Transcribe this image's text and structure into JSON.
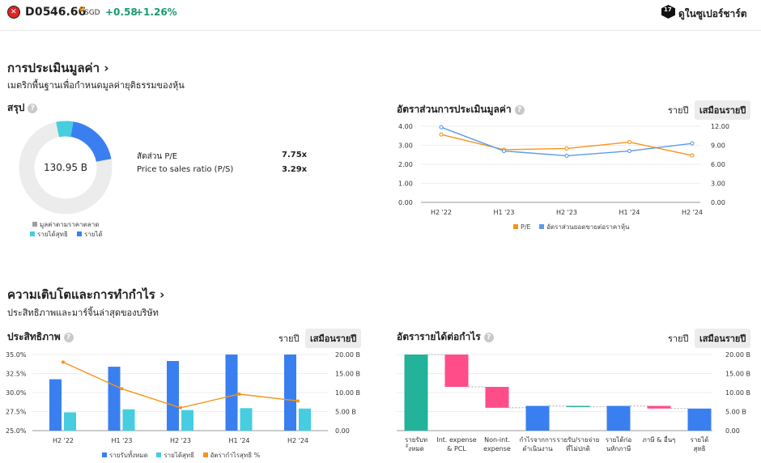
{
  "header": {
    "ticker": "D05",
    "price": "46.66",
    "price_sup": "D",
    "currency": "SGD",
    "change": "+0.58",
    "change_pct": "+1.26%",
    "supercharts_label": "ดูในซูเปอร์ชาร์ต",
    "supercharts_icon": "17",
    "colors": {
      "positive": "#1a9a6c",
      "logo": "#e02424"
    }
  },
  "valuation": {
    "title": "การประเมินมูลค่า ›",
    "subtitle": "เมตริกพื้นฐานเพื่อกำหนดมูลค่ายุติธรรมของหุ้น",
    "summary": {
      "title": "สรุป",
      "donut_center": "130.95 B",
      "metrics": [
        {
          "label": "สัดส่วน P/E",
          "value": "7.75x"
        },
        {
          "label": "Price to sales ratio (P/S)",
          "value": "3.29x"
        }
      ],
      "legend": [
        "มูลค่าตามราคาตลาด",
        "รายได้สุทธิ",
        "รายได้"
      ],
      "legend_colors": [
        "#9e9e9e",
        "#46cde0",
        "#3a7ff0"
      ],
      "donut_shares": {
        "revenue": 0.22,
        "net_income": 0.06
      }
    },
    "ratios": {
      "title": "อัตราส่วนการประเมินมูลค่า",
      "toggle": [
        "รายปี",
        "เสมือนรายปี"
      ],
      "legend": [
        "P/E",
        "อัตราส่วนยอดขายต่อราคาหุ้น"
      ]
    }
  },
  "growth": {
    "title": "ความเติบโตและการทำกำไร ›",
    "subtitle": "ประสิทธิภาพและมาร์จิ้นล่าสุดของบริษัท",
    "efficiency": {
      "title": "ประสิทธิภาพ",
      "toggle": [
        "รายปี",
        "เสมือนรายปี"
      ],
      "legend": [
        "รายรับทั้งหมด",
        "รายได้สุทธิ",
        "อัตรากำไรสุทธิ %"
      ]
    },
    "waterfall": {
      "title": "อัตรารายได้ต่อกำไร",
      "toggle": [
        "รายปี",
        "เสมือนรายปี"
      ]
    }
  },
  "chart_data": [
    {
      "type": "line",
      "title": "อัตราส่วนการประเมินมูลค่า",
      "categories": [
        "H2 '22",
        "H1 '23",
        "H2 '23",
        "H1 '24",
        "H2 '24"
      ],
      "series": [
        {
          "name": "P/E",
          "axis": "right",
          "color": "#f7931a",
          "values": [
            10.7,
            8.3,
            8.5,
            9.5,
            7.4
          ]
        },
        {
          "name": "อัตราส่วนยอดขายต่อราคาหุ้น",
          "axis": "left",
          "color": "#5b9bea",
          "values": [
            3.95,
            2.7,
            2.45,
            2.7,
            3.1
          ]
        }
      ],
      "left_ticks": [
        "4.00",
        "3.00",
        "2.00",
        "1.00",
        "0.00"
      ],
      "right_ticks": [
        "12.00",
        "9.00",
        "6.00",
        "3.00",
        "0.00"
      ],
      "ylim_left": [
        0,
        4
      ],
      "ylim_right": [
        0,
        12
      ]
    },
    {
      "type": "bar",
      "title": "ประสิทธิภาพ",
      "categories": [
        "H2 '22",
        "H1 '23",
        "H2 '23",
        "H1 '24",
        "H2 '24"
      ],
      "series": [
        {
          "name": "รายรับทั้งหมด",
          "axis": "right",
          "color": "#3a7ff0",
          "values": [
            13.5,
            16.8,
            18.3,
            20.0,
            20.0
          ]
        },
        {
          "name": "รายได้สุทธิ",
          "axis": "right",
          "color": "#46cde0",
          "values": [
            4.8,
            5.6,
            5.4,
            5.9,
            5.8
          ]
        },
        {
          "name": "อัตรากำไรสุทธิ %",
          "axis": "left",
          "type": "line",
          "color": "#f7931a",
          "values": [
            34.0,
            30.5,
            28.0,
            29.8,
            28.9
          ]
        }
      ],
      "left_ticks": [
        "35.0%",
        "32.5%",
        "30.0%",
        "27.5%",
        "25.0%"
      ],
      "right_ticks": [
        "20.00 B",
        "15.00 B",
        "10.00 B",
        "5.00 B",
        "0.00"
      ],
      "ylim_left": [
        25,
        35
      ],
      "ylim_right": [
        0,
        20
      ]
    },
    {
      "type": "waterfall",
      "title": "อัตรารายได้ต่อกำไร",
      "steps": [
        {
          "label": "รายรับทั้งหมด",
          "from": 0,
          "to": 20.0,
          "color": "#22b39a"
        },
        {
          "label": "Int. expense & PCL",
          "from": 20.0,
          "to": 11.5,
          "color": "#ff4d8a"
        },
        {
          "label": "Non-int. expense",
          "from": 11.5,
          "to": 6.0,
          "color": "#ff4d8a"
        },
        {
          "label": "กำไรจากการดำเนินงาน",
          "from": 0,
          "to": 6.5,
          "color": "#3a7ff0"
        },
        {
          "label": "รายรับ/รายจ่าย ที่ไม่ปกติ",
          "from": 6.5,
          "to": 6.3,
          "color": "#22b39a"
        },
        {
          "label": "รายได้ก่อนหักภาษี",
          "from": 0,
          "to": 6.5,
          "color": "#3a7ff0"
        },
        {
          "label": "ภาษี & อื่นๆ",
          "from": 6.5,
          "to": 5.8,
          "color": "#ff4d8a"
        },
        {
          "label": "รายได้สุทธิ",
          "from": 0,
          "to": 5.8,
          "color": "#3a7ff0"
        }
      ],
      "right_ticks": [
        "20.00 B",
        "15.00 B",
        "10.00 B",
        "5.00 B",
        "0.00"
      ],
      "ylim": [
        0,
        20
      ]
    }
  ]
}
